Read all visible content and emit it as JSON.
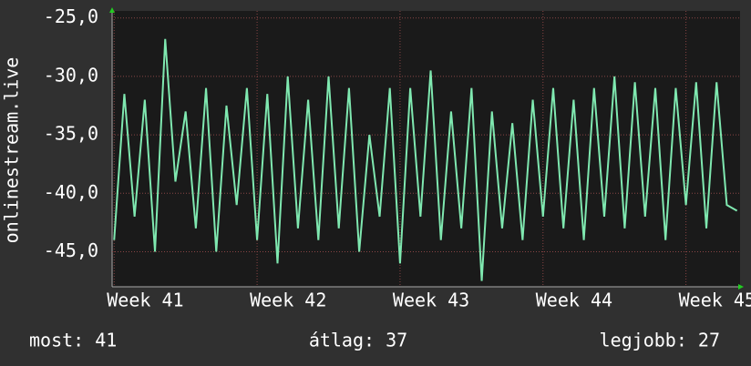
{
  "chart_data": {
    "type": "line",
    "y_label": "onlinestream.live",
    "x": [
      0,
      0.5,
      1,
      1.5,
      2,
      2.5,
      3,
      3.5,
      4,
      4.5,
      5,
      5.5,
      6,
      6.5,
      7,
      7.5,
      8,
      8.5,
      9,
      9.5,
      10,
      10.5,
      11,
      11.5,
      12,
      12.5,
      13,
      13.5,
      14,
      14.5,
      15,
      15.5,
      16,
      16.5,
      17,
      17.5,
      18,
      18.5,
      19,
      19.5,
      20,
      20.5,
      21,
      21.5,
      22,
      22.5,
      23,
      23.5,
      24,
      24.5,
      25,
      25.5,
      26,
      26.5,
      27,
      27.5,
      28,
      28.5,
      29,
      29.5,
      30,
      30.5
    ],
    "series": [
      {
        "name": "onlinestream.live",
        "color": "#7fe8b0",
        "values": [
          -44,
          -31.5,
          -42,
          -32,
          -45,
          -26.8,
          -39,
          -33,
          -43,
          -31,
          -45,
          -32.5,
          -41,
          -31,
          -44,
          -31.5,
          -46,
          -30,
          -43,
          -32,
          -44,
          -30,
          -43,
          -31,
          -45,
          -35,
          -42,
          -31,
          -46,
          -31,
          -42,
          -29.5,
          -44,
          -33,
          -43,
          -31,
          -47.5,
          -33,
          -43,
          -34,
          -44,
          -32,
          -42,
          -31,
          -43,
          -32,
          -44,
          -31,
          -42,
          -30,
          -43,
          -30.5,
          -42,
          -31,
          -44,
          -31,
          -41,
          -30.5,
          -43,
          -30.5,
          -41,
          -41.5
        ]
      }
    ],
    "xlim": [
      -0.1,
      30.65
    ],
    "xticks": [
      {
        "value": 0,
        "label": "Week 41"
      },
      {
        "value": 7,
        "label": "Week 42"
      },
      {
        "value": 14,
        "label": "Week 43"
      },
      {
        "value": 21,
        "label": "Week 44"
      },
      {
        "value": 28,
        "label": "Week 45"
      }
    ],
    "ylim": [
      -48,
      -24.4
    ],
    "yticks": [
      {
        "value": -45,
        "label": "-45,0"
      },
      {
        "value": -40,
        "label": "-40,0"
      },
      {
        "value": -35,
        "label": "-35,0"
      },
      {
        "value": -30,
        "label": "-30,0"
      },
      {
        "value": -25,
        "label": "-25,0"
      }
    ],
    "grid": true,
    "footer": {
      "current": "most: 41",
      "average": "átlag: 37",
      "best": "legjobb: 27"
    }
  }
}
